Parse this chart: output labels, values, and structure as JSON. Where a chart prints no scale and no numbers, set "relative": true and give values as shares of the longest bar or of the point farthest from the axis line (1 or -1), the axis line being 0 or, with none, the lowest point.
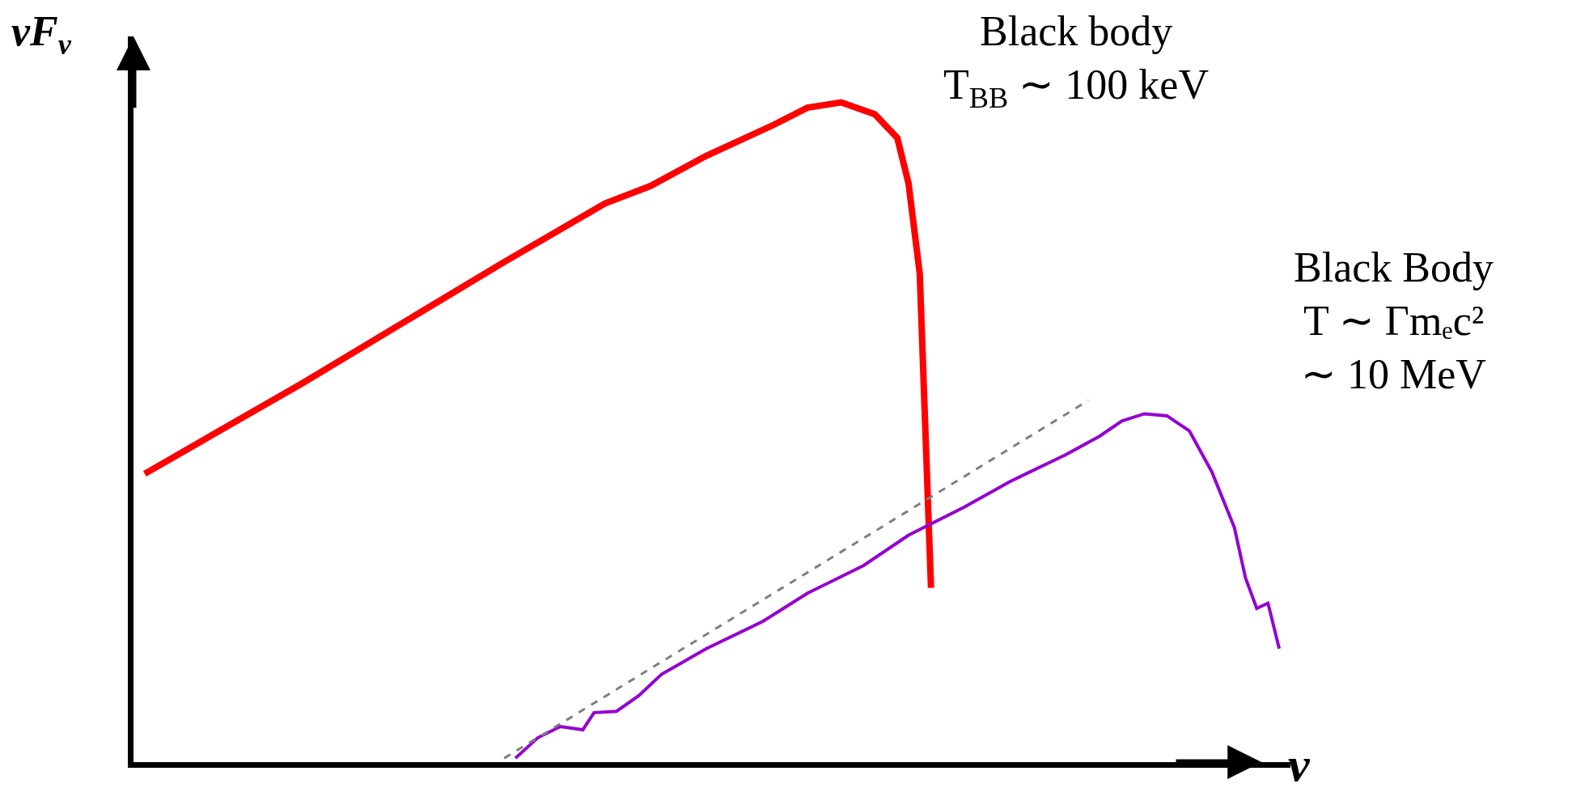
{
  "chart_data": {
    "type": "line",
    "relative": true,
    "xlabel": "ν",
    "ylabel": "νF$_{ν}$",
    "marker": "none",
    "annotations": [
      "Black body\nT$_{BB}$ ∼ 100 keV",
      "Black Body\nT ∼ Γmₑc²\n∼ 10 MeV"
    ],
    "categories": [
      null,
      null,
      null,
      null,
      null,
      null,
      null,
      null,
      null,
      null,
      null,
      null,
      null,
      null,
      null,
      null,
      null,
      null,
      null,
      null,
      null,
      null,
      null,
      null,
      null,
      null,
      null,
      null,
      null,
      null,
      null,
      null,
      null,
      null,
      null,
      null,
      null,
      null,
      null,
      null,
      null,
      null,
      null,
      null,
      null,
      null,
      null,
      null,
      null,
      null,
      null,
      null,
      null,
      null,
      null,
      null,
      null,
      null,
      null,
      null,
      null,
      null,
      null,
      null,
      null,
      null,
      null,
      null,
      null,
      null,
      null,
      null,
      null,
      null,
      null,
      null,
      null,
      null,
      null,
      null,
      null,
      null,
      null,
      null,
      null,
      null,
      null,
      null,
      null,
      null,
      null,
      null,
      null,
      null,
      null,
      null,
      null,
      null,
      null,
      null,
      null,
      null,
      null
    ],
    "series": [
      {
        "color": "#ff0000",
        "line_style": "solid",
        "values": [
          null,
          0.437,
          null,
          null,
          null,
          null,
          0.486,
          null,
          null,
          null,
          null,
          null,
          null,
          null,
          null,
          0.574,
          null,
          null,
          null,
          null,
          null,
          null,
          null,
          null,
          0.666,
          null,
          null,
          null,
          null,
          null,
          null,
          null,
          null,
          0.758,
          null,
          null,
          null,
          null,
          null,
          null,
          null,
          null,
          0.847,
          null,
          null,
          null,
          0.873,
          null,
          null,
          null,
          null,
          0.919,
          null,
          null,
          null,
          null,
          null,
          0.966,
          null,
          null,
          0.992,
          null,
          null,
          1,
          null,
          null,
          0.982,
          null,
          0.946,
          0.877,
          0.74,
          0.264,
          null,
          null,
          null,
          null,
          null,
          null,
          null,
          null,
          null,
          null,
          null,
          null,
          null,
          null,
          null,
          null,
          null,
          null,
          null,
          null,
          null,
          null,
          null,
          null,
          null,
          null,
          null,
          null,
          null,
          null,
          null
        ]
      },
      {
        "color": "#9400d3",
        "line_style": "solid",
        "values": [
          null,
          null,
          null,
          null,
          null,
          null,
          null,
          null,
          null,
          null,
          null,
          null,
          null,
          null,
          null,
          null,
          null,
          null,
          null,
          null,
          null,
          null,
          null,
          null,
          null,
          null,
          null,
          null,
          null,
          null,
          null,
          null,
          null,
          null,
          0.006,
          null,
          0.037,
          null,
          0.054,
          null,
          0.049,
          0.075,
          null,
          0.077,
          null,
          0.101,
          null,
          0.133,
          null,
          null,
          null,
          0.172,
          null,
          null,
          null,
          null,
          0.213,
          null,
          null,
          null,
          0.256,
          null,
          null,
          null,
          null,
          0.298,
          null,
          null,
          null,
          0.344,
          null,
          null,
          null,
          null,
          0.387,
          null,
          null,
          null,
          0.425,
          null,
          null,
          null,
          null,
          0.466,
          null,
          null,
          0.494,
          null,
          0.517,
          null,
          0.528,
          null,
          0.525,
          null,
          0.502,
          null,
          0.44,
          null,
          0.356,
          0.279,
          0.233,
          0.241,
          0.172
        ]
      },
      {
        "color": "#808080",
        "line_style": "dashed",
        "values": [
          null,
          null,
          null,
          null,
          null,
          null,
          null,
          null,
          null,
          null,
          null,
          null,
          null,
          null,
          null,
          null,
          null,
          null,
          null,
          null,
          null,
          null,
          null,
          null,
          null,
          null,
          null,
          null,
          null,
          null,
          null,
          null,
          null,
          0.006,
          null,
          null,
          null,
          null,
          null,
          null,
          null,
          null,
          null,
          null,
          null,
          null,
          null,
          null,
          null,
          null,
          null,
          null,
          null,
          null,
          null,
          null,
          null,
          null,
          null,
          null,
          null,
          null,
          null,
          null,
          null,
          null,
          null,
          null,
          null,
          null,
          null,
          null,
          null,
          null,
          null,
          null,
          null,
          null,
          null,
          null,
          null,
          null,
          null,
          null,
          null,
          0.548,
          null,
          null,
          null,
          null,
          null,
          null,
          null,
          null,
          null,
          null,
          null,
          null,
          null,
          null,
          null,
          null,
          null
        ]
      }
    ]
  }
}
